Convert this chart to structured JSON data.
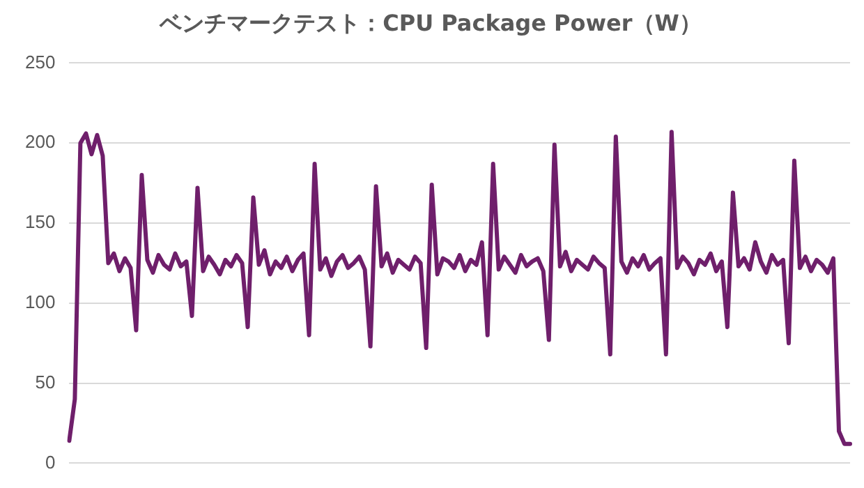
{
  "chart_data": {
    "type": "line",
    "title": "ベンチマークテスト：CPU Package Power（W）",
    "categories": [
      null,
      null,
      null,
      null,
      null,
      null,
      null,
      null,
      null,
      null,
      null,
      null,
      null,
      null,
      null,
      null,
      null,
      null,
      null,
      null,
      null,
      null,
      null,
      null,
      null,
      null,
      null,
      null,
      null,
      null,
      null,
      null,
      null,
      null,
      null,
      null,
      null,
      null,
      null,
      null,
      null,
      null,
      null,
      null,
      null,
      null,
      null,
      null,
      null,
      null,
      null,
      null,
      null,
      null,
      null,
      null,
      null,
      null,
      null,
      null,
      null,
      null,
      null,
      null,
      null,
      null,
      null,
      null,
      null,
      null,
      null,
      null,
      null,
      null,
      null,
      null,
      null,
      null,
      null,
      null,
      null,
      null,
      null,
      null,
      null,
      null,
      null,
      null,
      null,
      null,
      null,
      null,
      null,
      null,
      null,
      null,
      null,
      null,
      null,
      null,
      null,
      null,
      null,
      null,
      null,
      null,
      null,
      null,
      null,
      null,
      null,
      null,
      null,
      null,
      null,
      null,
      null,
      null,
      null,
      null,
      null,
      null,
      null,
      null,
      null,
      null,
      null,
      null,
      null,
      null,
      null,
      null,
      null,
      null,
      null,
      null,
      null,
      null,
      null,
      null,
      null
    ],
    "series": [
      {
        "color": "#6f1f6b",
        "values": [
          14,
          40,
          200,
          206,
          193,
          205,
          192,
          125,
          131,
          120,
          128,
          122,
          83,
          180,
          127,
          119,
          130,
          124,
          121,
          131,
          123,
          126,
          92,
          172,
          120,
          129,
          124,
          118,
          127,
          123,
          130,
          125,
          85,
          166,
          124,
          133,
          118,
          126,
          122,
          129,
          120,
          127,
          131,
          80,
          187,
          121,
          128,
          117,
          126,
          130,
          122,
          125,
          129,
          121,
          73,
          173,
          123,
          131,
          119,
          127,
          124,
          121,
          129,
          125,
          72,
          174,
          118,
          128,
          126,
          122,
          130,
          120,
          127,
          124,
          138,
          80,
          187,
          121,
          129,
          124,
          119,
          130,
          123,
          126,
          128,
          120,
          77,
          199,
          123,
          132,
          120,
          127,
          124,
          121,
          129,
          125,
          122,
          68,
          204,
          126,
          119,
          128,
          123,
          130,
          121,
          125,
          128,
          68,
          207,
          122,
          129,
          125,
          118,
          127,
          124,
          131,
          120,
          126,
          85,
          169,
          123,
          128,
          121,
          138,
          126,
          119,
          130,
          124,
          127,
          75,
          189,
          122,
          129,
          120,
          127,
          124,
          119,
          128,
          20,
          12,
          12
        ]
      }
    ],
    "ylim": [
      0,
      250
    ],
    "yticks": [
      0,
      50,
      100,
      150,
      200,
      250
    ],
    "grid": "y",
    "tick_labels": "y",
    "marker": "none",
    "line_style": "solid"
  }
}
